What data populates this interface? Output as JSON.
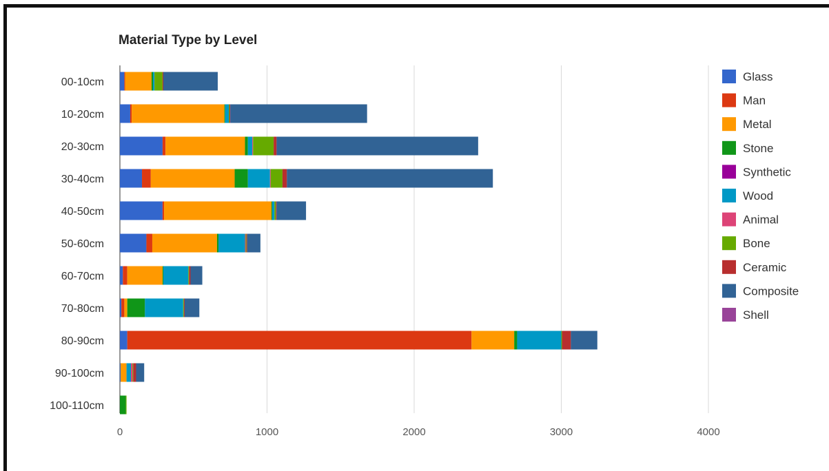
{
  "chart_data": {
    "type": "bar",
    "orientation": "horizontal",
    "stacked": true,
    "title": "Material Type by Level",
    "xlabel": "",
    "ylabel": "",
    "xlim": [
      0,
      4500
    ],
    "xticks": [
      0,
      1000,
      2000,
      3000,
      4000
    ],
    "grid": true,
    "legend_position": "right",
    "categories": [
      "00-10cm",
      "10-20cm",
      "20-30cm",
      "30-40cm",
      "40-50cm",
      "50-60cm",
      "60-70cm",
      "70-80cm",
      "80-90cm",
      "90-100cm",
      "100-110cm"
    ],
    "series": [
      {
        "name": "Glass",
        "color": "#3366cc",
        "values": [
          30,
          70,
          290,
          150,
          290,
          180,
          20,
          10,
          50,
          5,
          0
        ]
      },
      {
        "name": "Man",
        "color": "#dc3912",
        "values": [
          5,
          10,
          20,
          60,
          10,
          40,
          30,
          20,
          2340,
          0,
          0
        ]
      },
      {
        "name": "Metal",
        "color": "#ff9900",
        "values": [
          180,
          630,
          540,
          570,
          730,
          440,
          240,
          20,
          290,
          40,
          0
        ]
      },
      {
        "name": "Stone",
        "color": "#109618",
        "values": [
          10,
          5,
          20,
          90,
          5,
          10,
          5,
          120,
          20,
          0,
          40
        ]
      },
      {
        "name": "Synthetic",
        "color": "#990099",
        "values": [
          0,
          0,
          0,
          0,
          0,
          0,
          0,
          0,
          0,
          0,
          0
        ]
      },
      {
        "name": "Wood",
        "color": "#0099c6",
        "values": [
          10,
          25,
          30,
          150,
          15,
          180,
          170,
          260,
          300,
          30,
          0
        ]
      },
      {
        "name": "Animal",
        "color": "#dd4477",
        "values": [
          0,
          0,
          5,
          5,
          0,
          5,
          0,
          0,
          0,
          10,
          0
        ]
      },
      {
        "name": "Bone",
        "color": "#66aa00",
        "values": [
          55,
          5,
          140,
          80,
          10,
          5,
          5,
          5,
          5,
          5,
          5
        ]
      },
      {
        "name": "Ceramic",
        "color": "#b82e2e",
        "values": [
          5,
          5,
          20,
          30,
          5,
          5,
          10,
          5,
          60,
          20,
          0
        ]
      },
      {
        "name": "Composite",
        "color": "#316395",
        "values": [
          370,
          930,
          1370,
          1400,
          200,
          90,
          80,
          100,
          180,
          55,
          0
        ]
      },
      {
        "name": "Shell",
        "color": "#994499",
        "values": [
          0,
          0,
          0,
          0,
          0,
          0,
          0,
          0,
          0,
          0,
          0
        ]
      }
    ]
  }
}
